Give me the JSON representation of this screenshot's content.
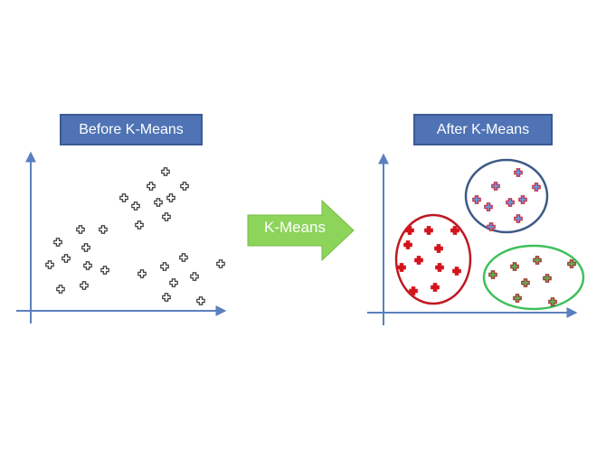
{
  "before": {
    "title": "Before K-Means"
  },
  "after": {
    "title": "After K-Means"
  },
  "arrow": {
    "label": "K-Means"
  },
  "colors": {
    "title_box": "#4f73b4",
    "axis": "#5b7fbf",
    "arrow_fill": "#8cd45a",
    "cluster_red": "#c01822",
    "cluster_blue": "#3d5a86",
    "cluster_green": "#3fbf5a",
    "plus_red": "#d4141c",
    "plus_blue_fill": "#6f8fd8",
    "plus_blue_stroke": "#c2384a",
    "plus_green_fill": "#5fae4d",
    "plus_green_stroke": "#a33b3b",
    "plus_plain_stroke": "#444444"
  }
}
